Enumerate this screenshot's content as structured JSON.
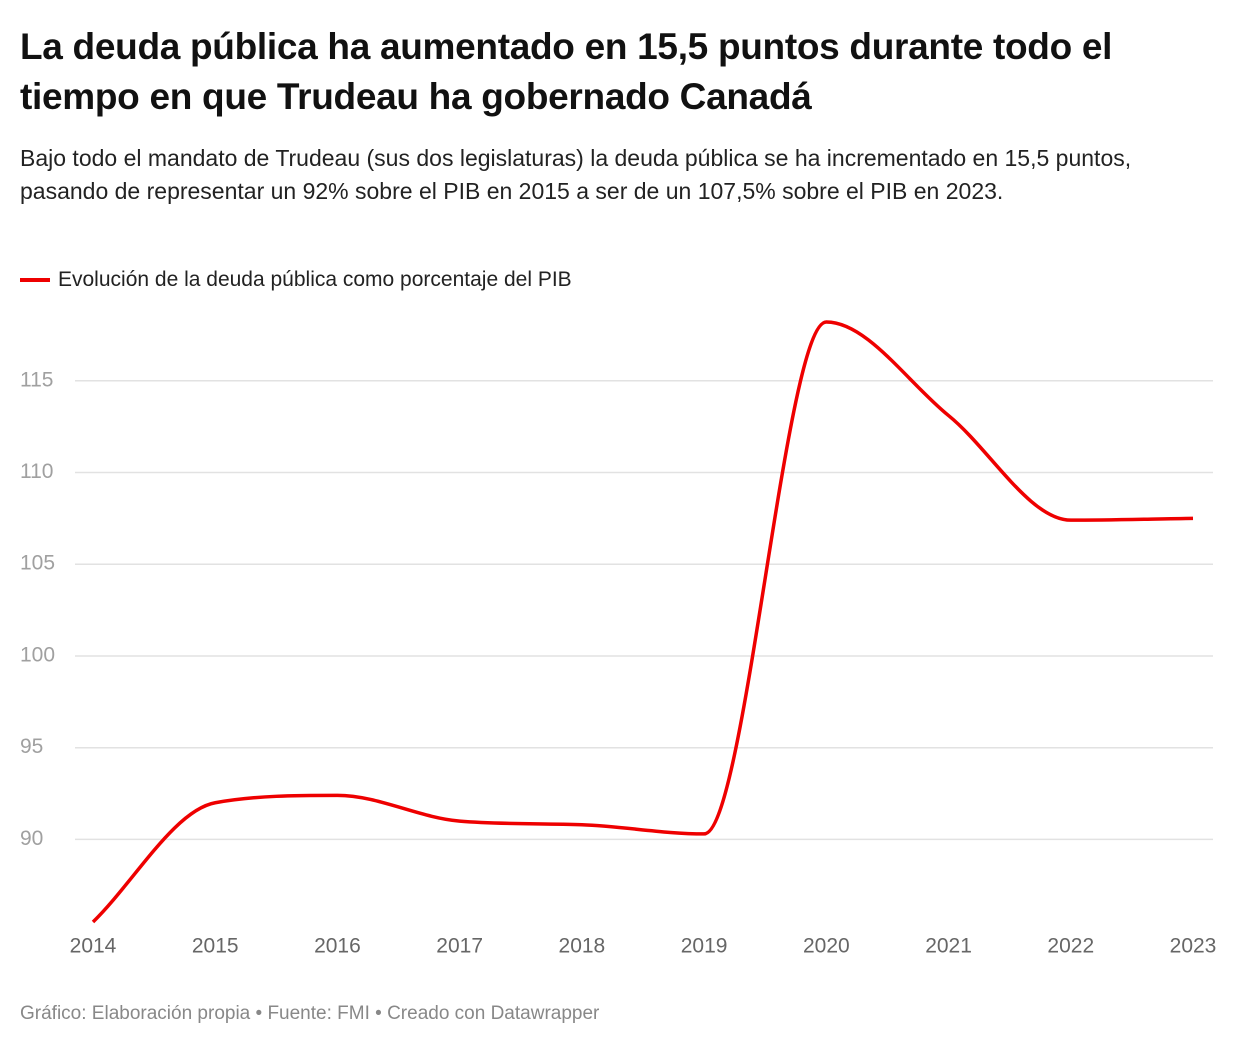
{
  "chart_data": {
    "type": "line",
    "title": "La deuda pública ha aumentado en 15,5 puntos durante todo el tiempo en que Trudeau ha gobernado Canadá",
    "subtitle": "Bajo todo el mandato de Trudeau (sus dos legislaturas) la deuda pública se ha incrementado en 15,5 puntos, pasando de representar un 92% sobre el PIB en 2015 a ser de un 107,5% sobre el PIB en 2023.",
    "categories": [
      "2014",
      "2015",
      "2016",
      "2017",
      "2018",
      "2019",
      "2020",
      "2021",
      "2022",
      "2023"
    ],
    "series": [
      {
        "name": "Evolución de la deuda pública como porcentaje del PIB",
        "color": "#ee0000",
        "values": [
          85.5,
          92,
          92.4,
          91,
          90.8,
          90.3,
          118.2,
          113.1,
          107.4,
          107.5
        ]
      }
    ],
    "ylim": [
      85.5,
      118.2
    ],
    "yticks": [
      90,
      95,
      100,
      105,
      110,
      115
    ],
    "grid": true,
    "source": "Gráfico: Elaboración propia • Fuente: FMI • Creado con Datawrapper"
  }
}
